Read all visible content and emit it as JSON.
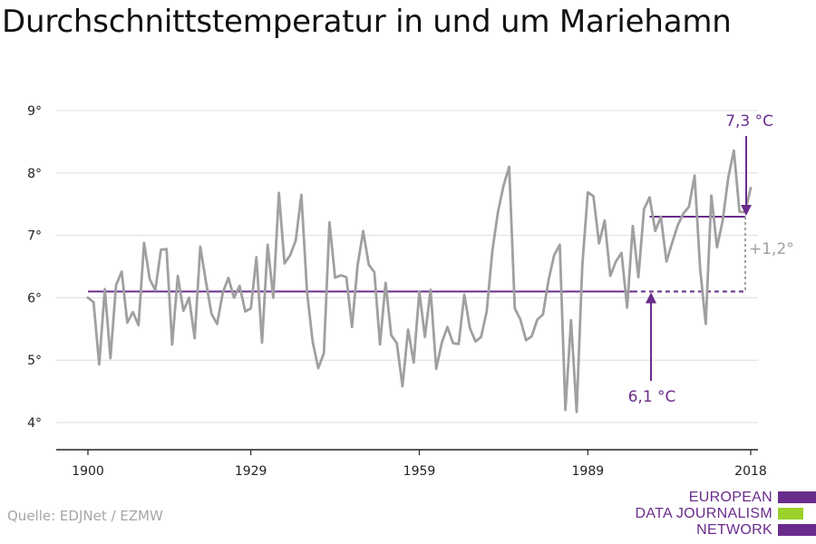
{
  "title": "Durchschnittstemperatur in und um Mariehamn",
  "source": "Quelle: EDJNet / EZMW",
  "logo": {
    "lines": [
      "EUROPEAN",
      "DATA JOURNALISM",
      "NETWORK"
    ],
    "colors": [
      "#6a2c8c",
      "#9bd12a",
      "#6a2c8c"
    ]
  },
  "colors": {
    "line": "#a0a0a0",
    "reference": "#6a2c8c",
    "delta": "#a0a0a0",
    "axis": "#222222",
    "grid": "#dddddd"
  },
  "annotations": {
    "recent_label": "7,3 °C",
    "baseline_label": "6,1 °C",
    "delta_label": "+1,2°"
  },
  "chart_data": {
    "type": "line",
    "title": "Durchschnittstemperatur in und um Mariehamn",
    "xlabel": "",
    "ylabel": "",
    "xlim": [
      1900,
      2018
    ],
    "ylim": [
      3.5,
      9.3
    ],
    "xticks": [
      1900,
      1929,
      1959,
      1989,
      2018
    ],
    "yticks": [
      4,
      5,
      6,
      7,
      8,
      9
    ],
    "ytick_suffix": "°",
    "grid": true,
    "baseline": {
      "value": 6.1,
      "from": 1900,
      "to": 1997
    },
    "recent_mean": {
      "value": 7.3,
      "from": 2000,
      "to": 2017
    },
    "series": [
      {
        "x": [
          1900,
          1901,
          1902,
          1903,
          1904,
          1905,
          1906,
          1907,
          1908,
          1909,
          1910,
          1911,
          1912,
          1913,
          1914,
          1915,
          1916,
          1917,
          1918,
          1919,
          1920,
          1921,
          1922,
          1923,
          1924,
          1925,
          1926,
          1927,
          1928,
          1929,
          1930,
          1931,
          1932,
          1933,
          1934,
          1935,
          1936,
          1937,
          1938,
          1939,
          1940,
          1941,
          1942,
          1943,
          1944,
          1945,
          1946,
          1947,
          1948,
          1949,
          1950,
          1951,
          1952,
          1953,
          1954,
          1955,
          1956,
          1957,
          1958,
          1959,
          1960,
          1961,
          1962,
          1963,
          1964,
          1965,
          1966,
          1967,
          1968,
          1969,
          1970,
          1971,
          1972,
          1973,
          1974,
          1975,
          1976,
          1977,
          1978,
          1979,
          1980,
          1981,
          1982,
          1983,
          1984,
          1985,
          1986,
          1987,
          1988,
          1989,
          1990,
          1991,
          1992,
          1993,
          1994,
          1995,
          1996,
          1997,
          1998,
          1999,
          2000,
          2001,
          2002,
          2003,
          2004,
          2005,
          2006,
          2007,
          2008,
          2009,
          2010,
          2011,
          2012,
          2013,
          2014,
          2015,
          2016,
          2017,
          2018
        ],
        "values": [
          6.0,
          5.93,
          4.93,
          6.14,
          5.03,
          6.2,
          6.42,
          5.6,
          5.77,
          5.56,
          6.88,
          6.3,
          6.12,
          6.77,
          6.78,
          5.25,
          6.35,
          5.79,
          6.0,
          5.35,
          6.82,
          6.26,
          5.74,
          5.58,
          6.08,
          6.32,
          6.0,
          6.19,
          5.78,
          5.83,
          6.65,
          5.28,
          6.85,
          6.0,
          7.68,
          6.55,
          6.68,
          6.92,
          7.65,
          6.1,
          5.3,
          4.87,
          5.11,
          7.21,
          6.32,
          6.36,
          6.33,
          5.53,
          6.52,
          7.07,
          6.53,
          6.41,
          5.25,
          6.24,
          5.4,
          5.27,
          4.58,
          5.49,
          4.96,
          6.1,
          5.37,
          6.13,
          4.86,
          5.28,
          5.53,
          5.27,
          5.26,
          6.05,
          5.51,
          5.3,
          5.37,
          5.78,
          6.75,
          7.37,
          7.8,
          8.1,
          5.83,
          5.65,
          5.32,
          5.38,
          5.65,
          5.73,
          6.28,
          6.68,
          6.85,
          4.2,
          5.64,
          4.17,
          6.5,
          7.69,
          7.63,
          6.87,
          7.24,
          6.35,
          6.58,
          6.72,
          5.84,
          7.15,
          6.33,
          7.42,
          7.61,
          7.07,
          7.3,
          6.58,
          6.88,
          7.16,
          7.35,
          7.46,
          7.96,
          6.47,
          5.58,
          7.64,
          6.81,
          7.23,
          7.92,
          8.36,
          7.38,
          7.37,
          7.76
        ]
      }
    ]
  }
}
